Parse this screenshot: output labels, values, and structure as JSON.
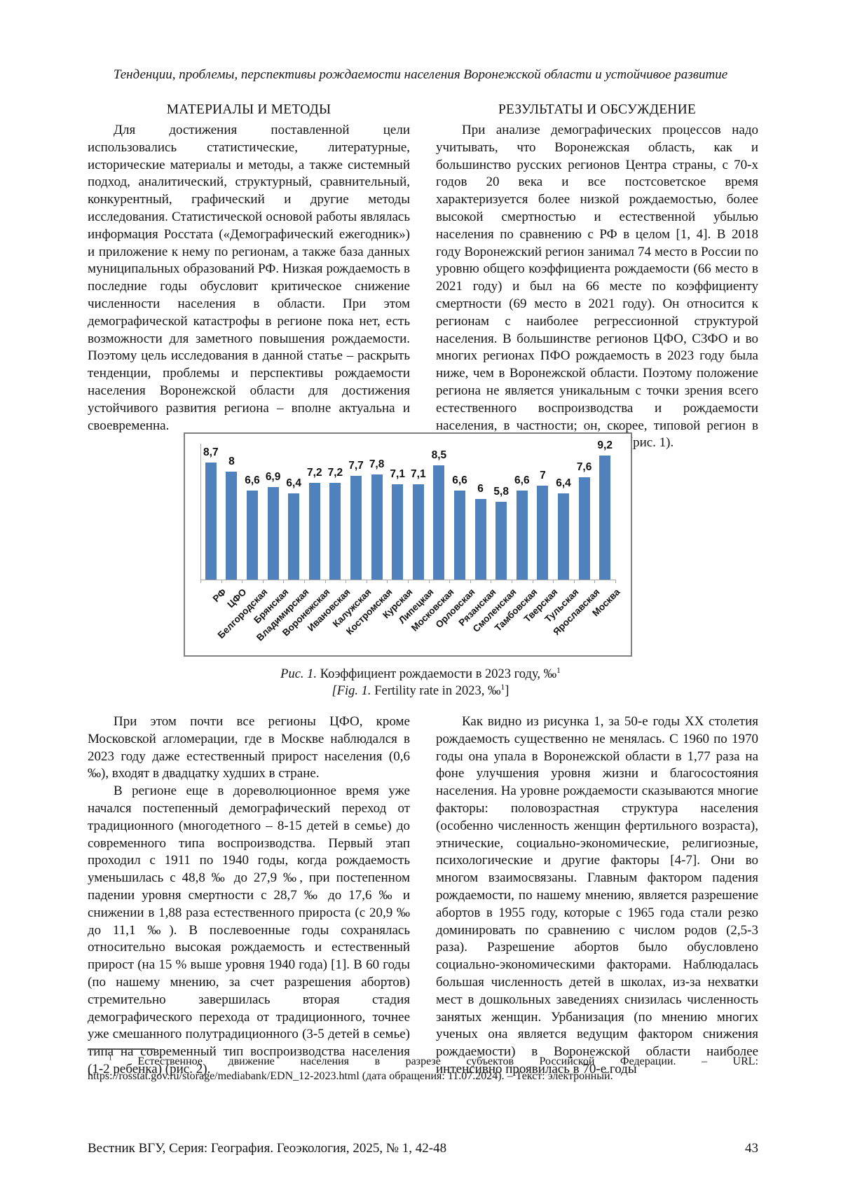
{
  "page": {
    "running_head": "Тенденции, проблемы, перспективы рождаемости населения Воронежской области и устойчивое развитие",
    "footer": "Вестник ВГУ, Серия: География. Геоэкология, 2025, № 1, 42-48",
    "page_number": "43"
  },
  "left_column": {
    "heading": "МАТЕРИАЛЫ И МЕТОДЫ",
    "paragraph": "Для достижения поставленной цели использовались статистические, литературные, исторические материалы и методы, а также системный подход, аналитический, структурный, сравнительный, конкурентный, графический и другие методы исследования. Статистической основой работы являлась информация Росстата («Демографический ежегодник») и приложение к нему по регионам, а также база данных муниципальных образований РФ. Низкая рождаемость в последние годы обусловит критическое снижение численности населения в области. При этом демографической катастрофы в регионе пока нет, есть возможности для заметного повышения рождаемости. Поэтому цель исследования в данной статье – раскрыть тенденции, проблемы и перспективы рождаемости населения Воронежской области для достижения устойчивого развития региона – вполне актуальна и своевременна."
  },
  "right_column": {
    "heading": "РЕЗУЛЬТАТЫ И ОБСУЖДЕНИЕ",
    "paragraph": "При анализе демографических процессов надо учитывать, что Воронежская область, как и большинство русских регионов Центра страны, с 70-х годов 20 века и все постсоветское время характеризуется более низкой рождаемостью, более высокой смертностью и естественной убылью населения по сравнению с РФ в целом [1, 4]. В 2018 году Воронежский регион занимал 74 место в России по уровню общего коэффициента рождаемости (66 место в 2021 году) и был на 66 месте по коэффициенту смертности (69 место в 2021 году). Он относится к регионам с наиболее регрессионной структурой населения. В большинстве регионов ЦФО, СЗФО и во многих регионах ПФО рождаемость в 2023 году была ниже, чем в Воронежской области. Поэтому положение региона не является уникальным с точки зрения всего естественного воспроизводства и рождаемости населения, в частности; он, скорее, типовой регион в этом качестве для Центра страны (рис. 1)."
  },
  "chart_data": {
    "type": "bar",
    "title": "",
    "xlabel": "",
    "ylabel": "",
    "unit": "‰",
    "ylim": [
      0,
      10
    ],
    "grid": false,
    "legend": false,
    "y_axis_labels_visible": false,
    "bar_color": "#4F81BD",
    "categories": [
      "РФ",
      "ЦФО",
      "Белгородская",
      "Брянская",
      "Владимирская",
      "Воронежская",
      "Ивановская",
      "Калужская",
      "Костромская",
      "Курская",
      "Липецкая",
      "Московская",
      "Орловская",
      "Рязанская",
      "Смоленская",
      "Тамбовская",
      "Тверская",
      "Тульская",
      "Ярославская",
      "Москва"
    ],
    "values": [
      8.7,
      8,
      6.6,
      6.9,
      6.4,
      7.2,
      7.2,
      7.7,
      7.8,
      7.1,
      7.1,
      8.5,
      6.6,
      6,
      5.8,
      6.6,
      7,
      6.4,
      7.6,
      9.2
    ],
    "value_labels": [
      "8,7",
      "8",
      "6,6",
      "6,9",
      "6,4",
      "7,2",
      "7,2",
      "7,7",
      "7,8",
      "7,1",
      "7,1",
      "8,5",
      "6,6",
      "6",
      "5,8",
      "6,6",
      "7",
      "6,4",
      "7,6",
      "9,2"
    ]
  },
  "figure": {
    "caption_ru_prefix": "Рис. 1.",
    "caption_ru_text": " Коэффициент рождаемости в 2023 году, ‰",
    "caption_ru_sup": "1",
    "caption_en_prefix": "[Fig. 1.",
    "caption_en_text": " Fertility rate in 2023, ‰",
    "caption_en_sup": "1",
    "caption_en_close": "]"
  },
  "lower_left": {
    "paragraph1": "При этом почти все регионы ЦФО, кроме Московской агломерации, где в Москве наблюдался в 2023 году даже естественный прирост населения (0,6 ‰), входят в двадцатку худших в стране.",
    "paragraph2": "В регионе еще в дореволюционное время уже начался постепенный демографический переход от традиционного (многодетного – 8-15 детей в семье) до современного типа воспроизводства. Первый этап проходил с 1911 по 1940 годы, когда рождаемость уменьшилась с 48,8 ‰ до 27,9 ‰, при постепенном падении уровня смертности с 28,7 ‰ до 17,6 ‰ и снижении в 1,88 раза естественного прироста (с 20,9 ‰ до 11,1 ‰). В послевоенные годы сохранялась относительно высокая рождаемость и естественный прирост (на 15 % выше уровня 1940 года) [1]. В 60 годы (по нашему мнению, за счет разрешения абортов) стремительно завершилась вторая стадия демографического перехода от традиционного, точнее уже смешанного полутрадиционного (3-5 детей в семье) типа на современный тип воспроизводства населения (1-2 ребенка) (рис. 2)."
  },
  "lower_right": {
    "paragraph": "Как видно из рисунка 1, за 50-е годы XX столетия рождаемость существенно не менялась. С 1960 по 1970 годы она упала в Воронежской области в 1,77 раза на фоне улучшения уровня жизни и благосостояния населения. На уровне рождаемости сказываются многие факторы: половозрастная структура населения (особенно численность женщин фертильного возраста), этнические, социально-экономические, религиозные, психологические и другие факторы [4-7]. Они во многом взаимосвязаны. Главным фактором падения рождаемости, по нашему мнению, является разрешение абортов в 1955 году, которые с 1965 года стали резко доминировать по сравнению с числом родов (2,5-3 раза). Разрешение абортов было обусловлено социально-экономическими факторами. Наблюдалась большая численность детей в школах, из-за нехватки мест в дошкольных заведениях снизилась численность занятых женщин. Урбанизация (по мнению многих ученых она является ведущим фактором снижения рождаемости) в Воронежской области наиболее интенсивно проявилась в 70-е годы"
  },
  "footnote": {
    "sup": "1",
    "text": " Естественное движение населения в разрезе субъектов Российской Федерации. – URL: https://rosstat.gov.ru/storage/mediabank/EDN_12-2023.html (дата обращения: 11.07.2024). – Текст: электронный."
  }
}
